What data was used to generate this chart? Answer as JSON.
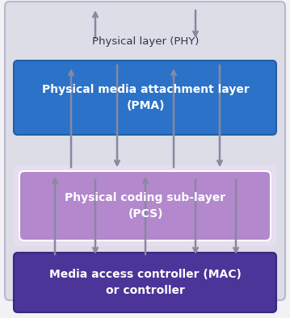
{
  "background_color": "#f2f2f6",
  "outer_box_color": "#dddde8",
  "outer_box_edge": "#b8b8cc",
  "pma_box_color": "#2b72c8",
  "pma_box_edge": "#2060a8",
  "pcs_box_color": "#b388cc",
  "pcs_box_edge": "#9966bb",
  "pcs_inner_bg": "#e8ddf0",
  "mac_box_color": "#4b3599",
  "mac_box_edge": "#382880",
  "arrow_color": "#8888a0",
  "phy_label": "Physical layer (PHY)",
  "phy_label_color": "#333344",
  "pma_label_line1": "Physical media attachment layer",
  "pma_label_line2": "(PMA)",
  "pcs_label_line1": "Physical coding sub-layer",
  "pcs_label_line2": "(PCS)",
  "mac_label_line1": "Media access controller (MAC)",
  "mac_label_line2": "or controller",
  "text_color_white": "#ffffff",
  "figsize": [
    3.59,
    3.94
  ],
  "dpi": 100
}
